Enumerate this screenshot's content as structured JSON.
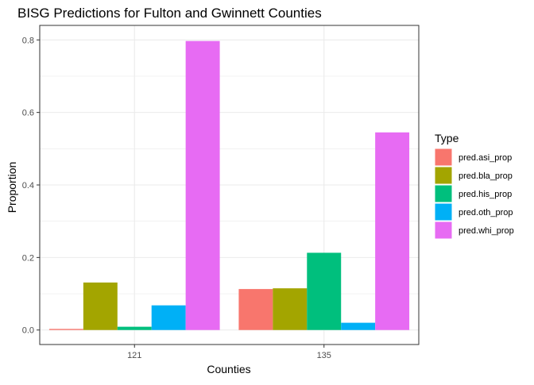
{
  "chart_data": {
    "type": "bar",
    "title": "BISG Predictions for Fulton and Gwinnett Counties",
    "xlabel": "Counties",
    "ylabel": "Proportion",
    "categories": [
      "121",
      "135"
    ],
    "ylim": [
      0,
      0.8
    ],
    "yticks": [
      "0.0",
      "0.2",
      "0.4",
      "0.6",
      "0.8"
    ],
    "grid": true,
    "legend": {
      "title": "Type",
      "position": "right"
    },
    "series": [
      {
        "name": "pred.asi_prop",
        "color": "#F8766D",
        "values": [
          0.003,
          0.113
        ]
      },
      {
        "name": "pred.bla_prop",
        "color": "#A3A500",
        "values": [
          0.131,
          0.115
        ]
      },
      {
        "name": "pred.his_prop",
        "color": "#00BF7D",
        "values": [
          0.009,
          0.213
        ]
      },
      {
        "name": "pred.oth_prop",
        "color": "#00B0F6",
        "values": [
          0.068,
          0.02
        ]
      },
      {
        "name": "pred.whi_prop",
        "color": "#E76BF3",
        "values": [
          0.797,
          0.545
        ]
      }
    ]
  }
}
